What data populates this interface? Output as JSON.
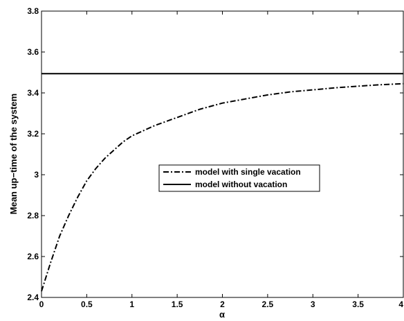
{
  "chart_data": {
    "type": "line",
    "xlabel": "α",
    "ylabel": "Mean up−time of the system",
    "xlim": [
      0,
      4
    ],
    "ylim": [
      2.4,
      3.8
    ],
    "xticks": [
      "0",
      "0.5",
      "1",
      "1.5",
      "2",
      "2.5",
      "3",
      "3.5",
      "4"
    ],
    "yticks": [
      "2.4",
      "2.6",
      "2.8",
      "3",
      "3.2",
      "3.4",
      "3.6",
      "3.8"
    ],
    "grid": false,
    "legend_position": "center",
    "series": [
      {
        "name": "model with single vacation",
        "style": "dash-dot",
        "color": "#000000",
        "x": [
          0,
          0.1,
          0.2,
          0.3,
          0.4,
          0.5,
          0.6,
          0.7,
          0.8,
          0.9,
          1.0,
          1.25,
          1.5,
          1.75,
          2.0,
          2.25,
          2.5,
          2.75,
          3.0,
          3.25,
          3.5,
          3.75,
          4.0
        ],
        "y": [
          2.43,
          2.57,
          2.7,
          2.8,
          2.89,
          2.97,
          3.03,
          3.08,
          3.12,
          3.16,
          3.19,
          3.24,
          3.28,
          3.32,
          3.35,
          3.37,
          3.39,
          3.405,
          3.415,
          3.425,
          3.433,
          3.44,
          3.445
        ]
      },
      {
        "name": "model without vacation",
        "style": "solid",
        "color": "#000000",
        "x": [
          0,
          4
        ],
        "y": [
          3.494,
          3.494
        ]
      }
    ]
  }
}
